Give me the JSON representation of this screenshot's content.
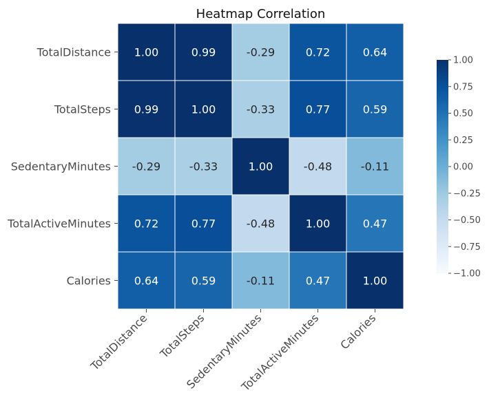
{
  "chart_data": {
    "type": "heatmap",
    "title": "Heatmap Correlation",
    "labels": [
      "TotalDistance",
      "TotalSteps",
      "SedentaryMinutes",
      "TotalActiveMinutes",
      "Calories"
    ],
    "matrix": [
      [
        1.0,
        0.99,
        -0.29,
        0.72,
        0.64
      ],
      [
        0.99,
        1.0,
        -0.33,
        0.77,
        0.59
      ],
      [
        -0.29,
        -0.33,
        1.0,
        -0.48,
        -0.11
      ],
      [
        0.72,
        0.77,
        -0.48,
        1.0,
        0.47
      ],
      [
        0.64,
        0.59,
        -0.11,
        0.47,
        1.0
      ]
    ],
    "cell_text": [
      [
        "1.00",
        "0.99",
        "-0.29",
        "0.72",
        "0.64"
      ],
      [
        "0.99",
        "1.00",
        "-0.33",
        "0.77",
        "0.59"
      ],
      [
        "-0.29",
        "-0.33",
        "1.00",
        "-0.48",
        "-0.11"
      ],
      [
        "0.72",
        "0.77",
        "-0.48",
        "1.00",
        "0.47"
      ],
      [
        "0.64",
        "0.59",
        "-0.11",
        "0.47",
        "1.00"
      ]
    ],
    "vmin": -1.0,
    "vmax": 1.0,
    "colormap": "Blues",
    "colormap_stops": [
      "#f7fbff",
      "#deebf7",
      "#c6dbef",
      "#9ecae1",
      "#6baed6",
      "#4292c6",
      "#2171b5",
      "#08519c",
      "#08306b"
    ],
    "grid_line_color": "#ffffff",
    "colorbar": {
      "placement": "right",
      "ticks": [
        1.0,
        0.75,
        0.5,
        0.25,
        0.0,
        -0.25,
        -0.5,
        -0.75,
        -1.0
      ],
      "tick_labels": [
        "1.00",
        "0.75",
        "0.50",
        "0.25",
        "0.00",
        "−0.25",
        "−0.50",
        "−0.75",
        "−1.00"
      ]
    }
  }
}
